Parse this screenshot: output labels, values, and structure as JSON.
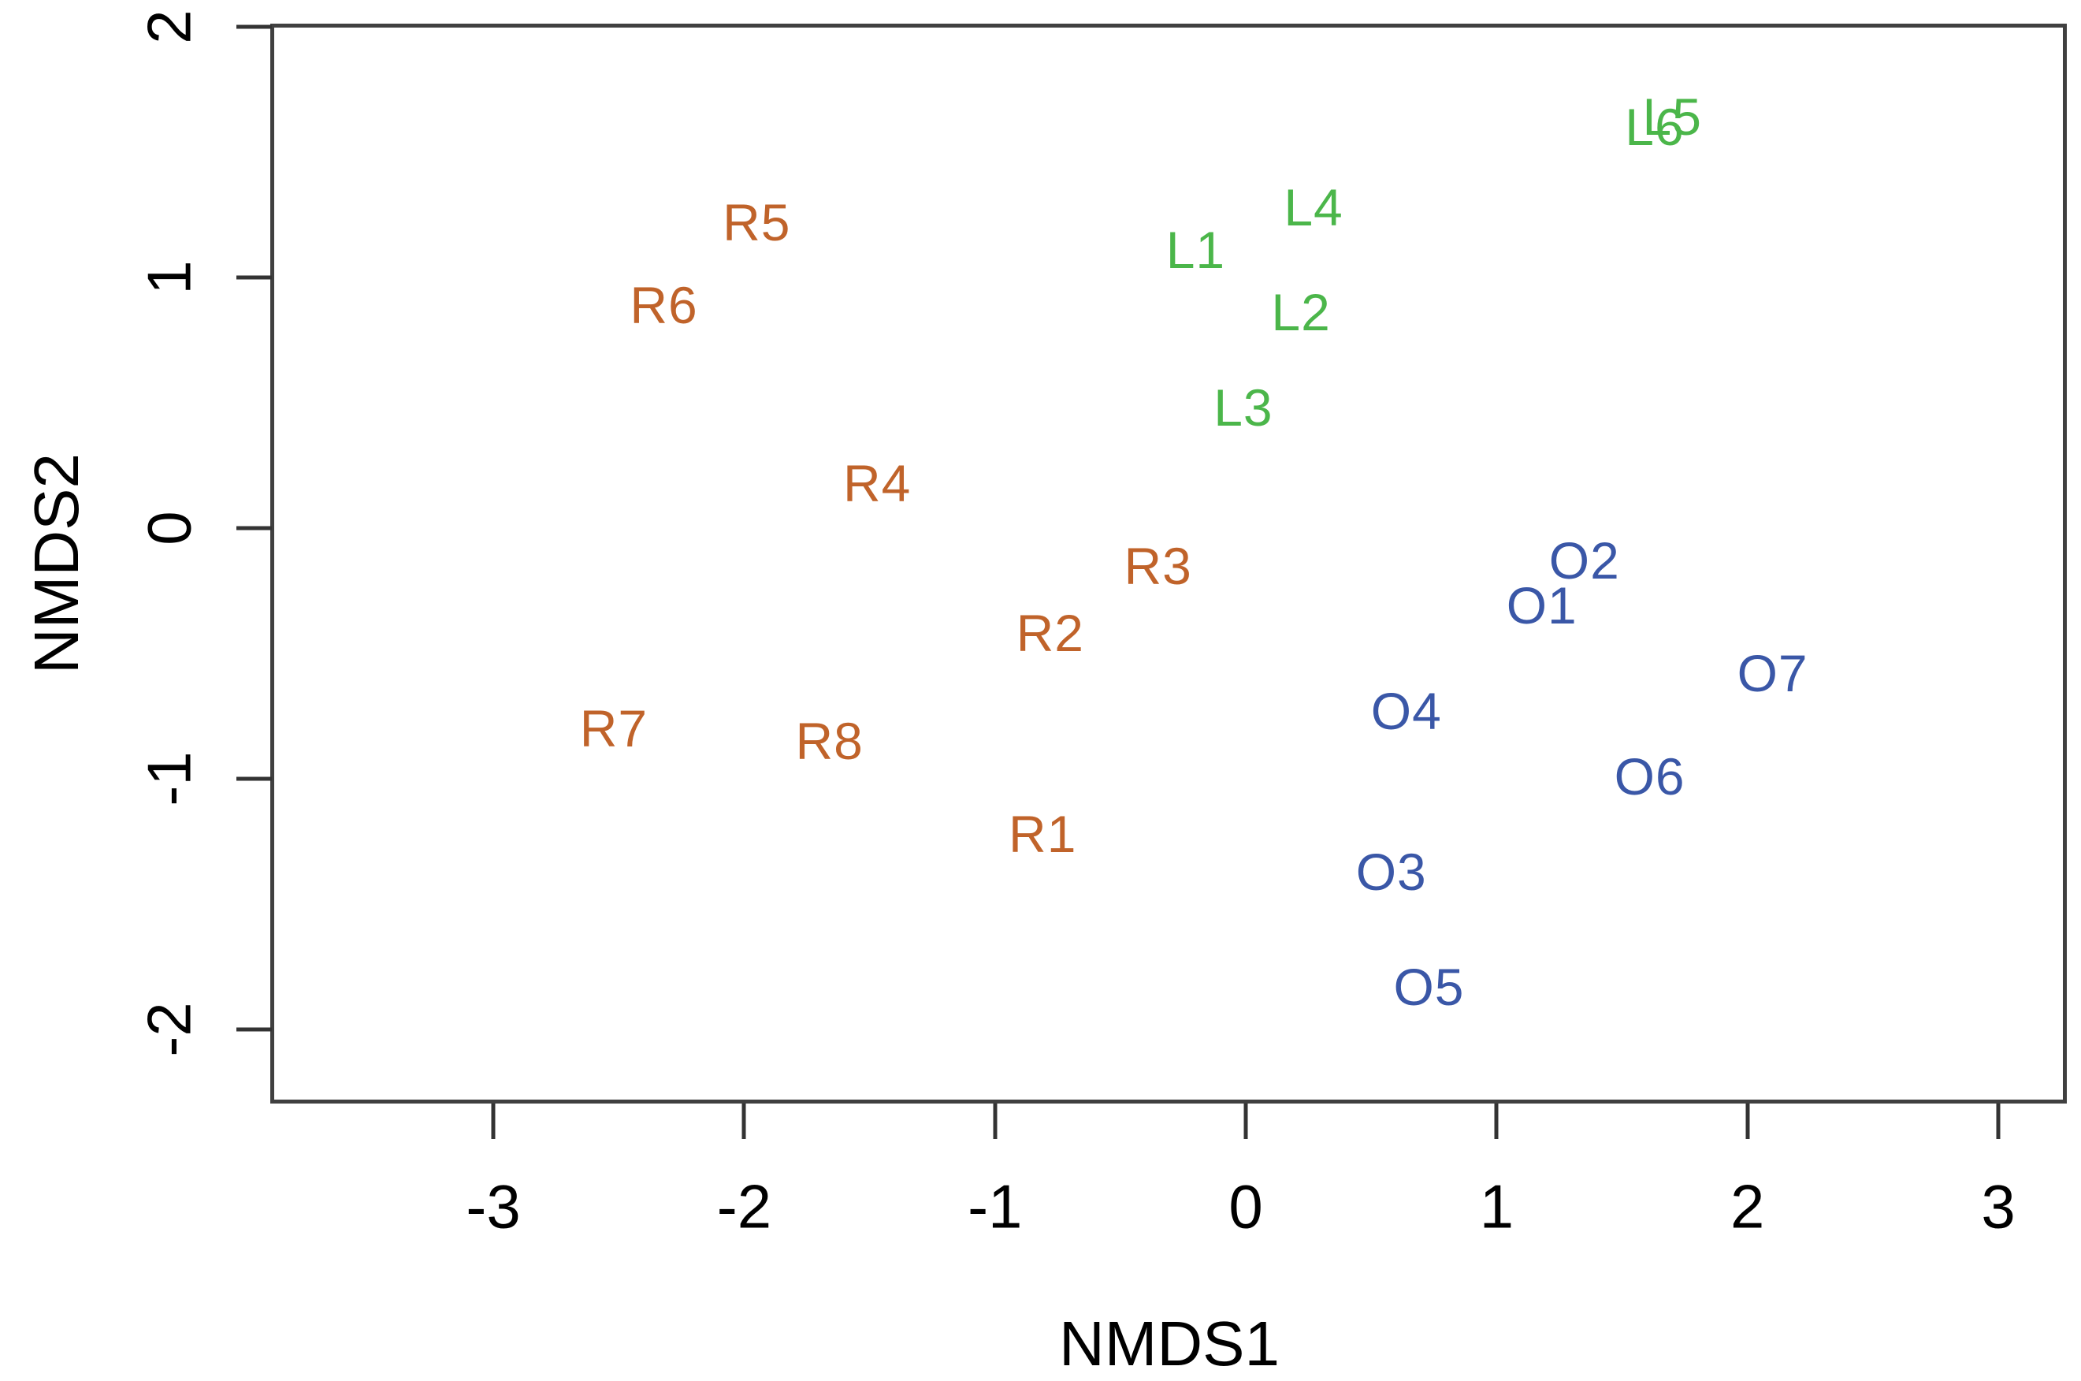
{
  "chart_data": {
    "type": "scatter",
    "title": "",
    "xlabel": "NMDS1",
    "ylabel": "NMDS2",
    "xlim": [
      -3.883,
      3.273
    ],
    "ylim": [
      -2.296,
      2.006
    ],
    "x_ticks": [
      -3,
      -2,
      -1,
      0,
      1,
      2,
      3
    ],
    "y_ticks": [
      -2,
      -1,
      0,
      1,
      2
    ],
    "grid": false,
    "legend": "none",
    "point_style": "text-labels",
    "axis_color": "#333333",
    "series": [
      {
        "name": "R",
        "color": "#C0632A",
        "points": [
          {
            "label": "R1",
            "x": -0.81,
            "y": -1.22
          },
          {
            "label": "R2",
            "x": -0.78,
            "y": -0.42
          },
          {
            "label": "R3",
            "x": -0.35,
            "y": -0.15
          },
          {
            "label": "R4",
            "x": -1.47,
            "y": 0.18
          },
          {
            "label": "R5",
            "x": -1.95,
            "y": 1.22
          },
          {
            "label": "R6",
            "x": -2.32,
            "y": 0.89
          },
          {
            "label": "R7",
            "x": -2.52,
            "y": -0.8
          },
          {
            "label": "R8",
            "x": -1.66,
            "y": -0.85
          }
        ]
      },
      {
        "name": "L",
        "color": "#4BB64A",
        "points": [
          {
            "label": "L1",
            "x": -0.2,
            "y": 1.11
          },
          {
            "label": "L2",
            "x": 0.22,
            "y": 0.86
          },
          {
            "label": "L3",
            "x": -0.01,
            "y": 0.48
          },
          {
            "label": "L4",
            "x": 0.27,
            "y": 1.28
          },
          {
            "label": "L5",
            "x": 1.7,
            "y": 1.64
          },
          {
            "label": "L6",
            "x": 1.63,
            "y": 1.6
          }
        ]
      },
      {
        "name": "O",
        "color": "#3A57A7",
        "points": [
          {
            "label": "O1",
            "x": 1.18,
            "y": -0.31
          },
          {
            "label": "O2",
            "x": 1.35,
            "y": -0.13
          },
          {
            "label": "O3",
            "x": 0.58,
            "y": -1.37
          },
          {
            "label": "O4",
            "x": 0.64,
            "y": -0.73
          },
          {
            "label": "O5",
            "x": 0.73,
            "y": -1.83
          },
          {
            "label": "O6",
            "x": 1.61,
            "y": -0.99
          },
          {
            "label": "O7",
            "x": 2.1,
            "y": -0.58
          }
        ]
      }
    ]
  }
}
